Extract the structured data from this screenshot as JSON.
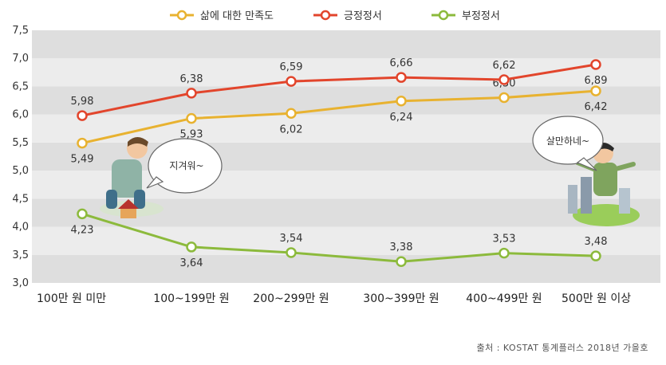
{
  "chart_data": {
    "type": "line",
    "categories": [
      "100만 원 미만",
      "100~199만 원",
      "200~299만 원",
      "300~399만 원",
      "400~499만 원",
      "500만 원 이상"
    ],
    "ylim": [
      3.0,
      7.5
    ],
    "yticks": [
      "3,0",
      "3,5",
      "4,0",
      "4,5",
      "5,0",
      "5,5",
      "6,0",
      "6,5",
      "7,0",
      "7,5"
    ],
    "grid": "horizontal alternating bands",
    "legend_position": "top",
    "series": [
      {
        "name": "삶에 대한 만족도",
        "color": "#e8b230",
        "values": [
          5.49,
          5.93,
          6.02,
          6.24,
          6.3,
          6.42
        ],
        "labels": [
          "5,49",
          "5,93",
          "6,02",
          "6,24",
          "6,30",
          "6,42"
        ],
        "label_pos": [
          "below",
          "below",
          "below",
          "below",
          "above",
          "below"
        ]
      },
      {
        "name": "긍정정서",
        "color": "#e2452c",
        "values": [
          5.98,
          6.38,
          6.59,
          6.66,
          6.62,
          6.89
        ],
        "labels": [
          "5,98",
          "6,38",
          "6,59",
          "6,66",
          "6,62",
          "6,89"
        ],
        "label_pos": [
          "above",
          "above",
          "above",
          "above",
          "above",
          "below"
        ]
      },
      {
        "name": "부정정서",
        "color": "#8cba3c",
        "values": [
          4.23,
          3.64,
          3.54,
          3.38,
          3.53,
          3.48
        ],
        "labels": [
          "4,23",
          "3,64",
          "3,54",
          "3,38",
          "3,53",
          "3,48"
        ],
        "label_pos": [
          "below",
          "below",
          "above",
          "above",
          "above",
          "above"
        ]
      }
    ],
    "annotations": [
      "지겨워~",
      "살만하네~"
    ]
  },
  "source": "출처 : KOSTAT 통계플러스 2018년 가을호"
}
